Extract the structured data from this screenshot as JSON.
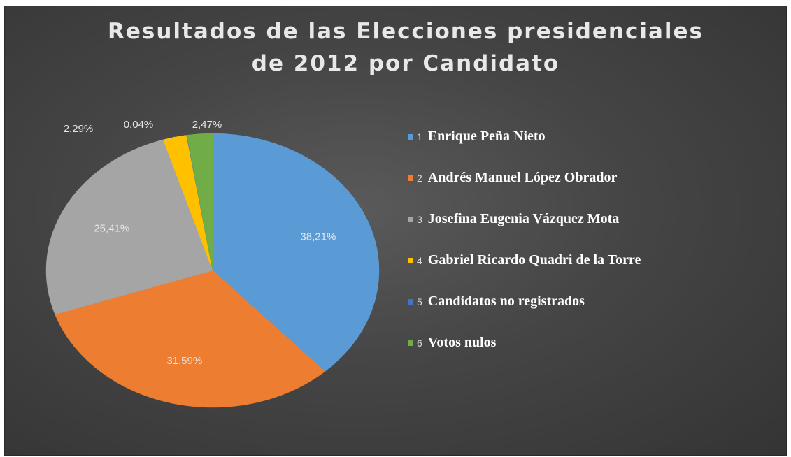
{
  "chart_data": {
    "type": "pie",
    "title": [
      "Resultados de las Elecciones presidenciales",
      "de 2012 por Candidato"
    ],
    "legend_position": "right",
    "slices": [
      {
        "num": "1",
        "name": "Enrique Peña Nieto",
        "value": 38.21,
        "label": "38,21%",
        "color": "#5b9bd5"
      },
      {
        "num": "2",
        "name": "Andrés Manuel López Obrador",
        "value": 31.59,
        "label": "31,59%",
        "color": "#ed7d31"
      },
      {
        "num": "3",
        "name": "Josefina Eugenia Vázquez Mota",
        "value": 25.41,
        "label": "25,41%",
        "color": "#a5a5a5"
      },
      {
        "num": "4",
        "name": "Gabriel Ricardo Quadri de la Torre",
        "value": 2.29,
        "label": "2,29%",
        "color": "#ffc000"
      },
      {
        "num": "5",
        "name": "Candidatos no registrados",
        "value": 0.04,
        "label": "0,04%",
        "color": "#4472c4"
      },
      {
        "num": "6",
        "name": "Votos nulos",
        "value": 2.47,
        "label": "2,47%",
        "color": "#70ad47"
      }
    ]
  }
}
